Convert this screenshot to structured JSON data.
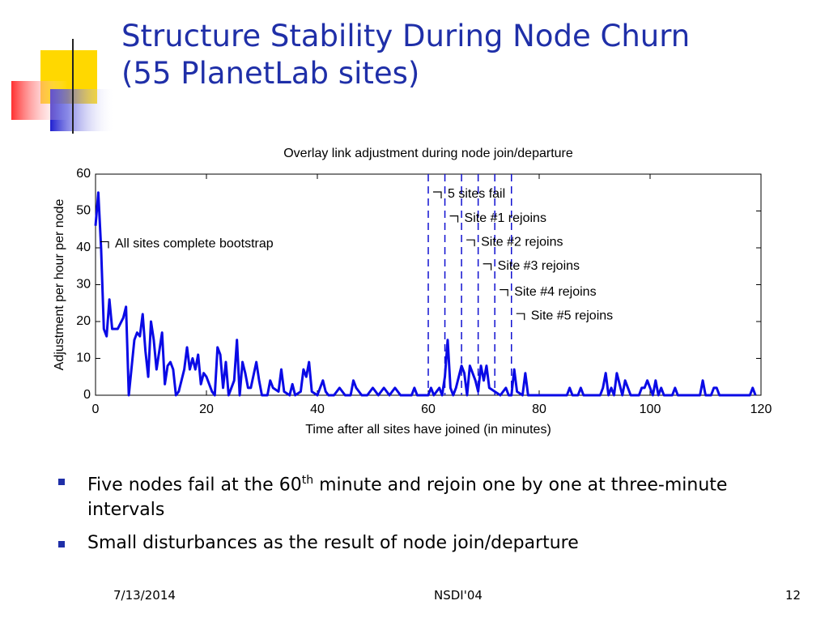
{
  "slide": {
    "title_lines": [
      "Structure Stability During Node Churn",
      "(55 PlanetLab sites)"
    ],
    "bullets": [
      [
        "Five nodes fail at the 60",
        "th",
        " minute and rejoin one by one at three-minute intervals"
      ],
      [
        "Small disturbances as the result of node join/departure"
      ]
    ],
    "footer": {
      "date": "7/13/2014",
      "center": "NSDI'04",
      "page": "12"
    }
  },
  "chart_data": {
    "type": "line",
    "title": "Overlay link adjustment during node join/departure",
    "x_label": "Time after all sites have joined (in minutes)",
    "y_label": "Adjustment per hour per node",
    "xlim": [
      0,
      120
    ],
    "xticks": [
      0,
      20,
      40,
      60,
      80,
      100,
      120
    ],
    "ylim": [
      0,
      60
    ],
    "yticks": [
      0,
      10,
      20,
      30,
      40,
      50,
      60
    ],
    "series": [
      {
        "color": "#0a0ae6",
        "x": [
          0,
          0.5,
          1,
          1.5,
          2,
          2.5,
          3,
          4,
          5,
          5.5,
          6,
          7,
          7.5,
          8,
          8.5,
          9,
          9.5,
          10,
          10.5,
          11,
          12,
          12.5,
          13,
          13.5,
          14,
          14.5,
          15,
          16,
          16.5,
          17,
          17.5,
          18,
          18.5,
          19,
          19.5,
          20,
          21,
          21.5,
          22,
          22.5,
          23,
          23.5,
          24,
          25,
          25.5,
          26,
          26.5,
          27,
          27.5,
          28,
          29,
          29.5,
          30,
          31,
          31.5,
          32,
          33,
          33.5,
          34,
          35,
          35.5,
          36,
          37,
          37.5,
          38,
          38.5,
          39,
          40,
          41,
          41.5,
          42,
          43,
          44,
          45,
          46,
          46.5,
          47,
          48,
          49,
          50,
          51,
          52,
          53,
          54,
          55,
          56,
          57,
          57.5,
          58,
          59,
          60,
          60.5,
          61,
          62,
          62.5,
          63,
          63.5,
          64,
          64.5,
          65,
          66,
          66.5,
          67,
          67.5,
          68,
          68.5,
          69,
          69.5,
          70,
          70.5,
          71,
          72,
          73,
          74,
          74.5,
          75,
          75.5,
          76,
          77,
          77.5,
          78,
          80,
          85,
          85.5,
          86,
          87,
          87.5,
          88,
          91,
          91.5,
          92,
          92.5,
          93,
          93.5,
          94,
          94.5,
          95,
          95.5,
          96,
          96.5,
          98,
          98.5,
          99,
          99.5,
          100,
          100.5,
          101,
          101.5,
          102,
          102.5,
          104,
          104.5,
          105,
          108,
          109,
          109.5,
          110,
          111,
          111.5,
          112,
          112.5,
          118,
          118.5,
          119
        ],
        "values": [
          46,
          55,
          40,
          18,
          16,
          26,
          18,
          18,
          21,
          24,
          0,
          15,
          17,
          16,
          22,
          12,
          5,
          20,
          15,
          7,
          17,
          3,
          8,
          9,
          7,
          0,
          1,
          7,
          13,
          7,
          10,
          7,
          11,
          3,
          6,
          5,
          1,
          0,
          13,
          11,
          2,
          9,
          0,
          4,
          15,
          0,
          9,
          6,
          2,
          2,
          9,
          4,
          0,
          0,
          4,
          2,
          1,
          7,
          1,
          0,
          3,
          0,
          1,
          7,
          5,
          9,
          1,
          0,
          4,
          1,
          0,
          0,
          2,
          0,
          0,
          4,
          2,
          0,
          0,
          2,
          0,
          2,
          0,
          2,
          0,
          0,
          0,
          2,
          0,
          0,
          0,
          2,
          0,
          2,
          0,
          5,
          15,
          2,
          0,
          2,
          8,
          6,
          0,
          8,
          6,
          4,
          1,
          8,
          4,
          8,
          2,
          1,
          0,
          2,
          0,
          0,
          7,
          1,
          0,
          6,
          0,
          0,
          0,
          2,
          0,
          0,
          2,
          0,
          0,
          2,
          6,
          0,
          2,
          0,
          6,
          3,
          0,
          4,
          2,
          0,
          0,
          2,
          2,
          4,
          2,
          0,
          4,
          0,
          2,
          0,
          0,
          2,
          0,
          0,
          0,
          4,
          0,
          0,
          2,
          2,
          0,
          0,
          2,
          0
        ]
      }
    ],
    "event_lines": [
      60,
      63,
      66,
      69,
      72,
      75
    ],
    "annotations": [
      {
        "text": "5 sites fail",
        "x": 60,
        "y": 54.5
      },
      {
        "text": "Site #1 rejoins",
        "x": 63,
        "y": 48
      },
      {
        "text": "Site #2 rejoins",
        "x": 66,
        "y": 41.5
      },
      {
        "text": "Site #3 rejoins",
        "x": 69,
        "y": 35
      },
      {
        "text": "Site #4 rejoins",
        "x": 72,
        "y": 28
      },
      {
        "text": "Site #5 rejoins",
        "x": 75,
        "y": 21.5
      },
      {
        "text": "All sites complete bootstrap",
        "x": 0,
        "y": 41
      }
    ]
  }
}
